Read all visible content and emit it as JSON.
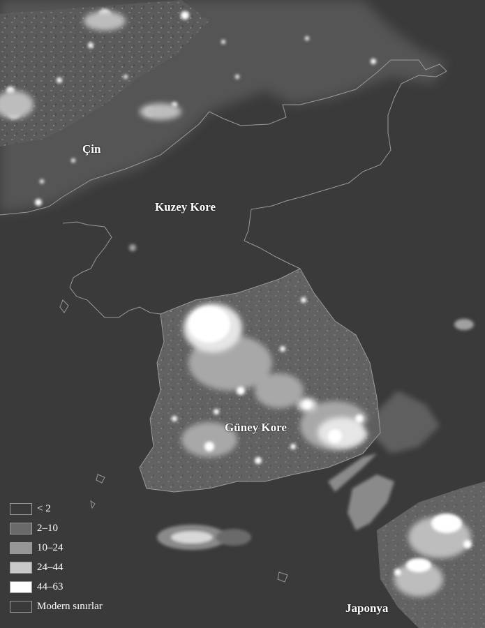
{
  "map": {
    "places": {
      "china": "Çin",
      "north_korea": "Kuzey Kore",
      "south_korea": "Güney Kore",
      "japan": "Japonya"
    },
    "legend": [
      {
        "label": "< 2",
        "color": "#3a3a3a"
      },
      {
        "label": "2–10",
        "color": "#6a6a6a"
      },
      {
        "label": "10–24",
        "color": "#969696"
      },
      {
        "label": "24–44",
        "color": "#c8c8c8"
      },
      {
        "label": "44–63",
        "color": "#ffffff"
      },
      {
        "label": "Modern sınırlar",
        "color": "#3a3a3a"
      }
    ],
    "colors": {
      "background": "#3a3a3a",
      "border_line": "#9a9a9a",
      "label_text": "#ffffff"
    }
  }
}
